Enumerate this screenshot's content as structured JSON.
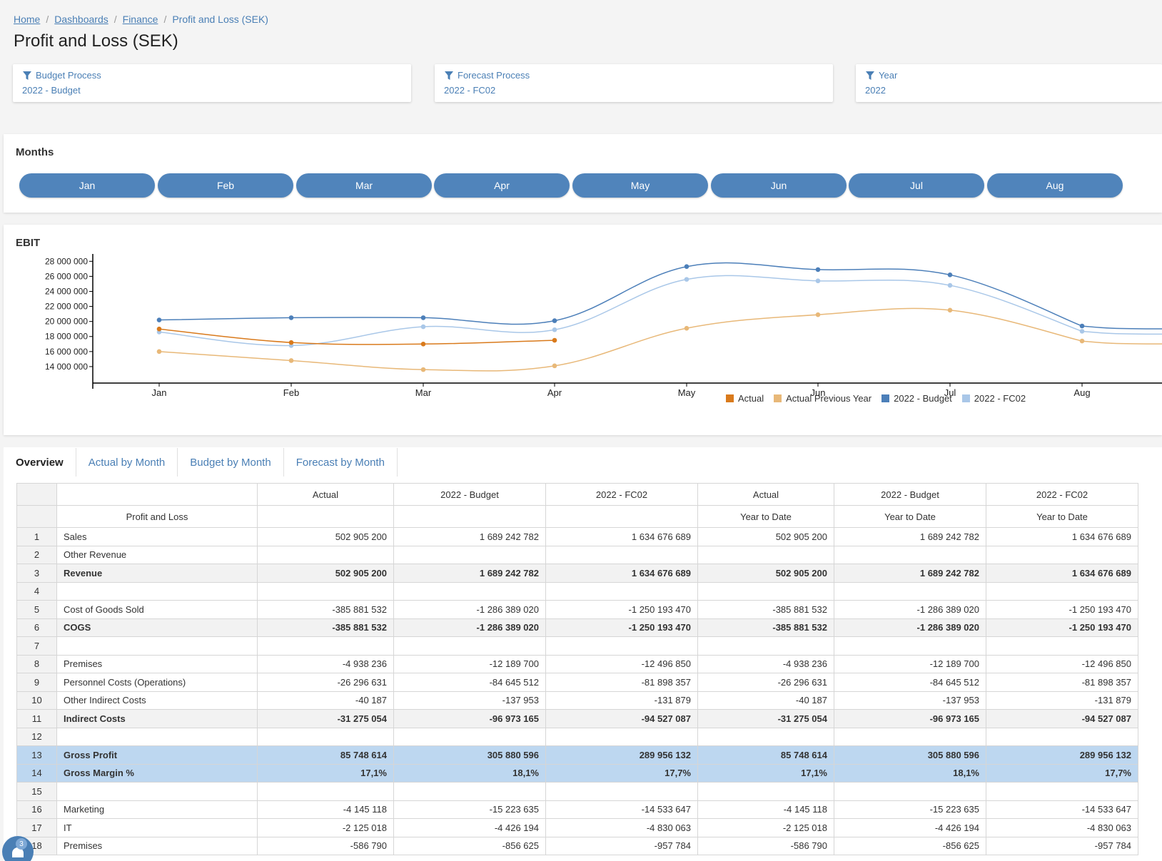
{
  "breadcrumb": {
    "home": "Home",
    "dashboards": "Dashboards",
    "finance": "Finance",
    "current": "Profit and Loss (SEK)"
  },
  "page_title": "Profit and Loss (SEK)",
  "filters": [
    {
      "label": "Budget Process",
      "value": "2022 - Budget"
    },
    {
      "label": "Forecast Process",
      "value": "2022 - FC02"
    },
    {
      "label": "Year",
      "value": "2022"
    }
  ],
  "months_panel": {
    "title": "Months",
    "buttons": [
      "Jan",
      "Feb",
      "Mar",
      "Apr",
      "May",
      "Jun",
      "Jul",
      "Aug"
    ]
  },
  "ebit_panel": {
    "title": "EBIT"
  },
  "chart_data": {
    "type": "line",
    "title": "EBIT",
    "categories": [
      "Jan",
      "Feb",
      "Mar",
      "Apr",
      "May",
      "Jun",
      "Jul",
      "Aug"
    ],
    "y_tick_labels": [
      "28 000 000",
      "26 000 000",
      "24 000 000",
      "22 000 000",
      "20 000 000",
      "18 000 000",
      "16 000 000",
      "14 000 000"
    ],
    "y_ticks": [
      28000000,
      26000000,
      24000000,
      22000000,
      20000000,
      18000000,
      16000000,
      14000000
    ],
    "ylim": [
      12000000,
      28600000
    ],
    "legend_position": "bottom",
    "series": [
      {
        "name": "Actual",
        "color": "#d97a1c",
        "values": [
          19000000,
          17200000,
          17000000,
          17500000,
          null,
          null,
          null,
          null
        ]
      },
      {
        "name": "Actual Previous Year",
        "color": "#e8b878",
        "values": [
          16000000,
          14800000,
          13600000,
          14100000,
          19100000,
          20900000,
          21500000,
          17400000
        ]
      },
      {
        "name": "2022 - Budget",
        "color": "#4c7fb9",
        "values": [
          20200000,
          20500000,
          20500000,
          20100000,
          27300000,
          26900000,
          26200000,
          19400000
        ]
      },
      {
        "name": "2022 - FC02",
        "color": "#a9c7e8",
        "values": [
          18600000,
          16800000,
          19300000,
          18900000,
          25600000,
          25400000,
          24800000,
          18700000
        ]
      }
    ]
  },
  "tabs": [
    "Overview",
    "Actual by Month",
    "Budget by Month",
    "Forecast by Month"
  ],
  "table": {
    "header1": [
      "",
      "",
      "Actual",
      "2022 - Budget",
      "2022 - FC02",
      "Actual",
      "2022 - Budget",
      "2022 - FC02"
    ],
    "header2": [
      "",
      "Profit and Loss",
      "",
      "",
      "",
      "Year to Date",
      "Year to Date",
      "Year to Date"
    ],
    "rows": [
      {
        "n": "1",
        "label": "Sales",
        "style": "",
        "vals": [
          "502 905 200",
          "1 689 242 782",
          "1 634 676 689",
          "502 905 200",
          "1 689 242 782",
          "1 634 676 689"
        ]
      },
      {
        "n": "2",
        "label": "Other Revenue",
        "style": "",
        "vals": [
          "",
          "",
          "",
          "",
          "",
          ""
        ]
      },
      {
        "n": "3",
        "label": "Revenue",
        "style": "bold",
        "vals": [
          "502 905 200",
          "1 689 242 782",
          "1 634 676 689",
          "502 905 200",
          "1 689 242 782",
          "1 634 676 689"
        ]
      },
      {
        "n": "4",
        "label": "",
        "style": "",
        "vals": [
          "",
          "",
          "",
          "",
          "",
          ""
        ]
      },
      {
        "n": "5",
        "label": "Cost of Goods Sold",
        "style": "",
        "vals": [
          "-385 881 532",
          "-1 286 389 020",
          "-1 250 193 470",
          "-385 881 532",
          "-1 286 389 020",
          "-1 250 193 470"
        ]
      },
      {
        "n": "6",
        "label": "COGS",
        "style": "bold",
        "vals": [
          "-385 881 532",
          "-1 286 389 020",
          "-1 250 193 470",
          "-385 881 532",
          "-1 286 389 020",
          "-1 250 193 470"
        ]
      },
      {
        "n": "7",
        "label": "",
        "style": "",
        "vals": [
          "",
          "",
          "",
          "",
          "",
          ""
        ]
      },
      {
        "n": "8",
        "label": "Premises",
        "style": "",
        "vals": [
          "-4 938 236",
          "-12 189 700",
          "-12 496 850",
          "-4 938 236",
          "-12 189 700",
          "-12 496 850"
        ]
      },
      {
        "n": "9",
        "label": "Personnel Costs (Operations)",
        "style": "",
        "vals": [
          "-26 296 631",
          "-84 645 512",
          "-81 898 357",
          "-26 296 631",
          "-84 645 512",
          "-81 898 357"
        ]
      },
      {
        "n": "10",
        "label": "Other Indirect Costs",
        "style": "",
        "vals": [
          "-40 187",
          "-137 953",
          "-131 879",
          "-40 187",
          "-137 953",
          "-131 879"
        ]
      },
      {
        "n": "11",
        "label": "Indirect Costs",
        "style": "bold",
        "vals": [
          "-31 275 054",
          "-96 973 165",
          "-94 527 087",
          "-31 275 054",
          "-96 973 165",
          "-94 527 087"
        ]
      },
      {
        "n": "12",
        "label": "",
        "style": "",
        "vals": [
          "",
          "",
          "",
          "",
          "",
          ""
        ]
      },
      {
        "n": "13",
        "label": "Gross Profit",
        "style": "hl",
        "vals": [
          "85 748 614",
          "305 880 596",
          "289 956 132",
          "85 748 614",
          "305 880 596",
          "289 956 132"
        ]
      },
      {
        "n": "14",
        "label": "Gross Margin %",
        "style": "hl",
        "vals": [
          "17,1%",
          "18,1%",
          "17,7%",
          "17,1%",
          "18,1%",
          "17,7%"
        ]
      },
      {
        "n": "15",
        "label": "",
        "style": "",
        "vals": [
          "",
          "",
          "",
          "",
          "",
          ""
        ]
      },
      {
        "n": "16",
        "label": "Marketing",
        "style": "",
        "vals": [
          "-4 145 118",
          "-15 223 635",
          "-14 533 647",
          "-4 145 118",
          "-15 223 635",
          "-14 533 647"
        ]
      },
      {
        "n": "17",
        "label": "IT",
        "style": "",
        "vals": [
          "-2 125 018",
          "-4 426 194",
          "-4 830 063",
          "-2 125 018",
          "-4 426 194",
          "-4 830 063"
        ]
      },
      {
        "n": "18",
        "label": "Premises",
        "style": "",
        "vals": [
          "-586 790",
          "-856 625",
          "-957 784",
          "-586 790",
          "-856 625",
          "-957 784"
        ]
      }
    ]
  },
  "chat": {
    "badge": "3"
  }
}
